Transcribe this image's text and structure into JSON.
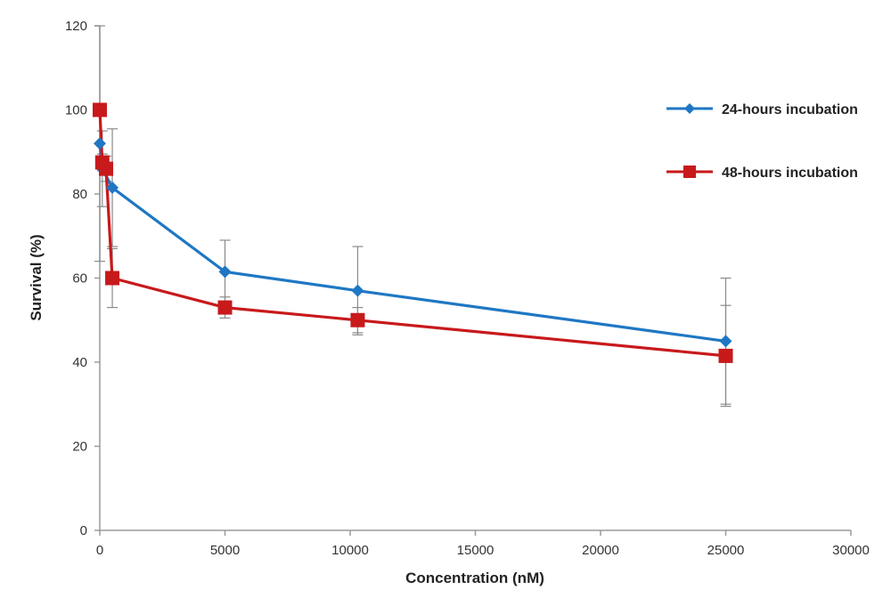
{
  "chart_data": {
    "type": "line",
    "title": "",
    "xlabel": "Concentration (nM)",
    "ylabel": "Survival (%)",
    "xlim": [
      0,
      30000
    ],
    "ylim": [
      0,
      120
    ],
    "xticks": [
      0,
      5000,
      10000,
      15000,
      20000,
      25000,
      30000
    ],
    "yticks": [
      0,
      20,
      40,
      60,
      80,
      100,
      120
    ],
    "grid": false,
    "legend_position": "right",
    "series": [
      {
        "name": "24-hours incubation",
        "color": "#1f77c4",
        "marker": "diamond",
        "points": [
          {
            "x": 0,
            "y": 92,
            "err": 28
          },
          {
            "x": 100,
            "y": 86,
            "err": 9
          },
          {
            "x": 500,
            "y": 81.5,
            "err": 14
          },
          {
            "x": 5000,
            "y": 61.5,
            "err": 7.5
          },
          {
            "x": 10300,
            "y": 57,
            "err": 10.5
          },
          {
            "x": 25000,
            "y": 45,
            "err": 15
          }
        ]
      },
      {
        "name": "48-hours incubation",
        "color": "#c8191b",
        "marker": "square",
        "points": [
          {
            "x": 0,
            "y": 100,
            "err": 0
          },
          {
            "x": 100,
            "y": 87.5,
            "err": 2
          },
          {
            "x": 250,
            "y": 86,
            "err": 3
          },
          {
            "x": 500,
            "y": 60,
            "err": 7
          },
          {
            "x": 5000,
            "y": 53,
            "err": 2.5
          },
          {
            "x": 10300,
            "y": 50,
            "err": 3
          },
          {
            "x": 25000,
            "y": 41.5,
            "err": 12
          }
        ]
      }
    ]
  }
}
